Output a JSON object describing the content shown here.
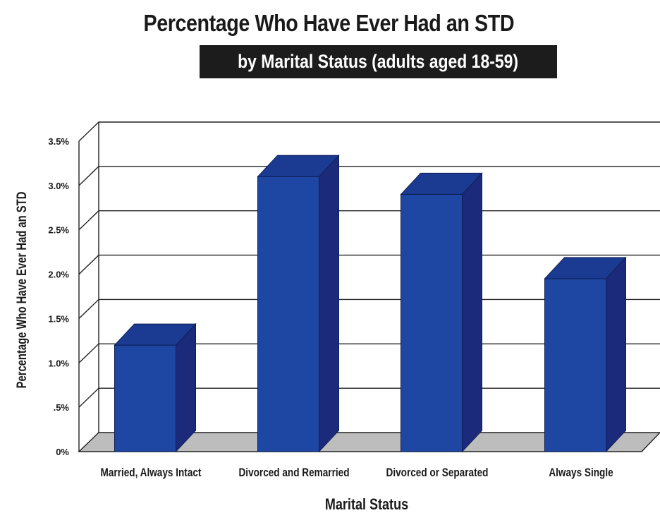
{
  "chart_data": {
    "type": "bar",
    "title": "Percentage Who Have Ever Had an STD",
    "subtitle": "by Marital Status (adults aged 18-59)",
    "xlabel": "Marital Status",
    "ylabel": "Percentage Who Have Ever Had an STD",
    "categories": [
      "Married, Always Intact",
      "Divorced and Remarried",
      "Divorced or Separated",
      "Always Single"
    ],
    "values": [
      1.2,
      3.1,
      2.9,
      1.95
    ],
    "ylim": [
      0,
      3.5
    ],
    "yticks": [
      0,
      0.5,
      1.0,
      1.5,
      2.0,
      2.5,
      3.0,
      3.5
    ],
    "ytick_labels": [
      "0%",
      ".5%",
      "1.0%",
      "1.5%",
      "2.0%",
      "2.5%",
      "3.0%",
      "3.5%"
    ],
    "grid": true,
    "style": "3d",
    "bar_color": "#1e47a3",
    "bar_top_color": "#1a3b91",
    "bar_side_color": "#1c2a7c",
    "floor_color": "#bdbdbd"
  }
}
